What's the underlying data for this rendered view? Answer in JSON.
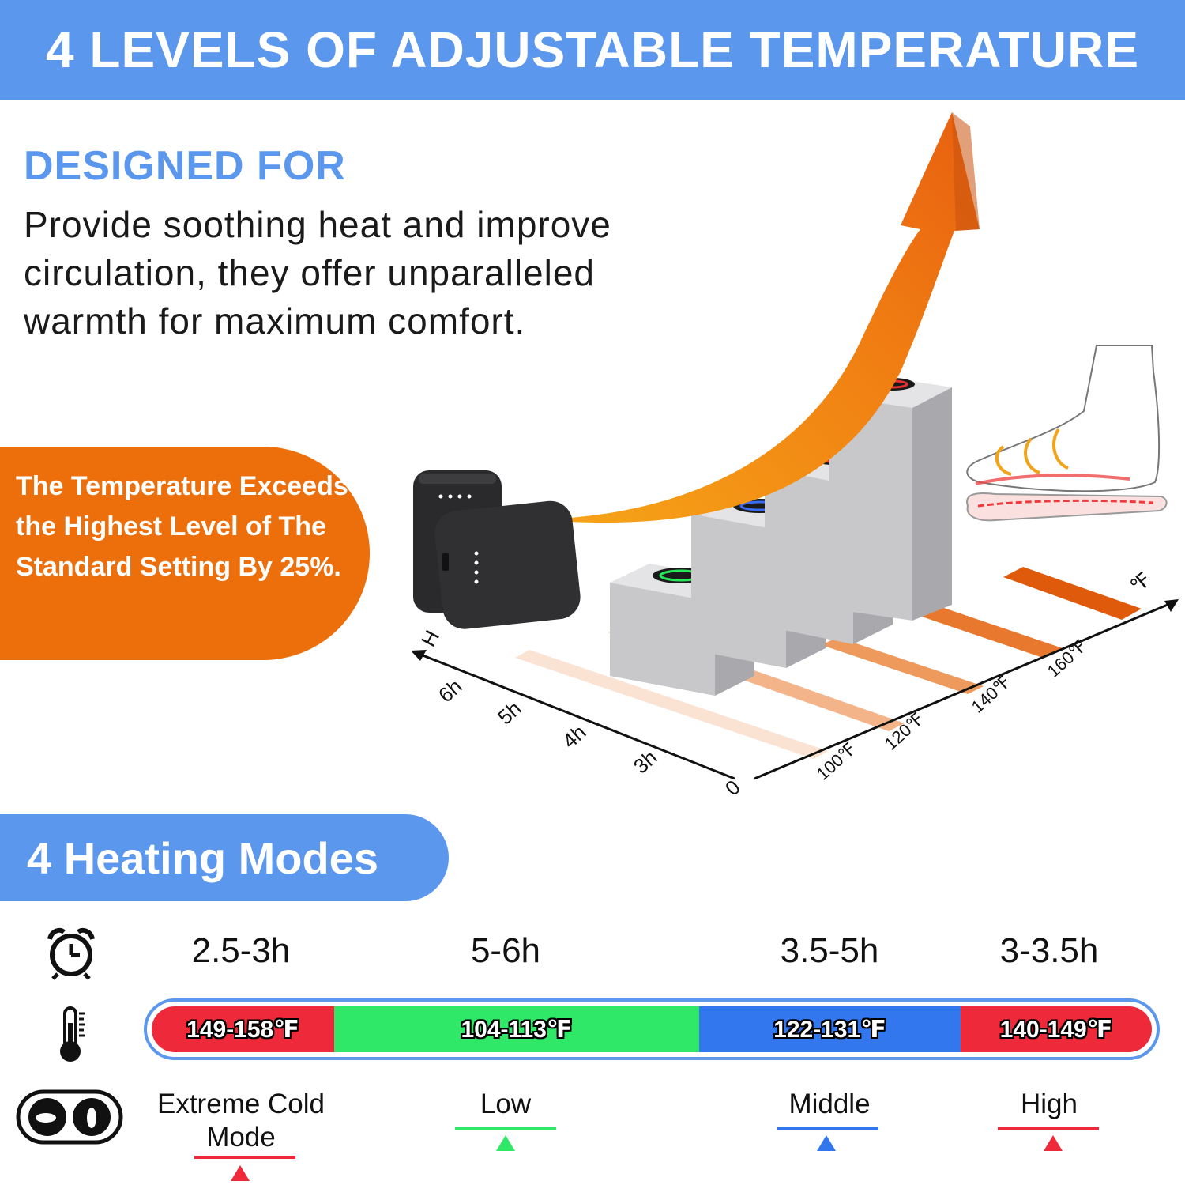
{
  "banner": {
    "title": "4 LEVELS OF ADJUSTABLE TEMPERATURE"
  },
  "designed": {
    "heading": "DESIGNED FOR",
    "body": "Provide soothing heat and improve circulation, they offer unparalleled warmth for maximum comfort."
  },
  "callout": {
    "text": "The Temperature Exceeds the Highest Level of The Standard Setting By 25%."
  },
  "axis": {
    "h_label": "H",
    "f_label": "℉",
    "hours": [
      "6h",
      "5h",
      "4h",
      "3h"
    ],
    "origin": "0",
    "temps": [
      "100℉",
      "120℉",
      "140℉",
      "160℉"
    ]
  },
  "modes": {
    "title": "4 Heating Modes",
    "items": [
      {
        "time": "2.5-3h",
        "range": "149-158℉",
        "name": "Extreme Cold Mode",
        "color": "#ee2a3a"
      },
      {
        "time": "5-6h",
        "range": "104-113℉",
        "name": "Low",
        "color": "#2fe868"
      },
      {
        "time": "3.5-5h",
        "range": "122-131℉",
        "name": "Middle",
        "color": "#3377ee"
      },
      {
        "time": "3-3.5h",
        "range": "140-149℉",
        "name": "High",
        "color": "#ee2a3a"
      }
    ]
  },
  "icons": [
    "alarm-clock-icon",
    "thermometer-icon",
    "mode-switch-icon"
  ],
  "colors": {
    "brand_blue": "#5b97ec",
    "brand_orange": "#ec6f0b"
  }
}
